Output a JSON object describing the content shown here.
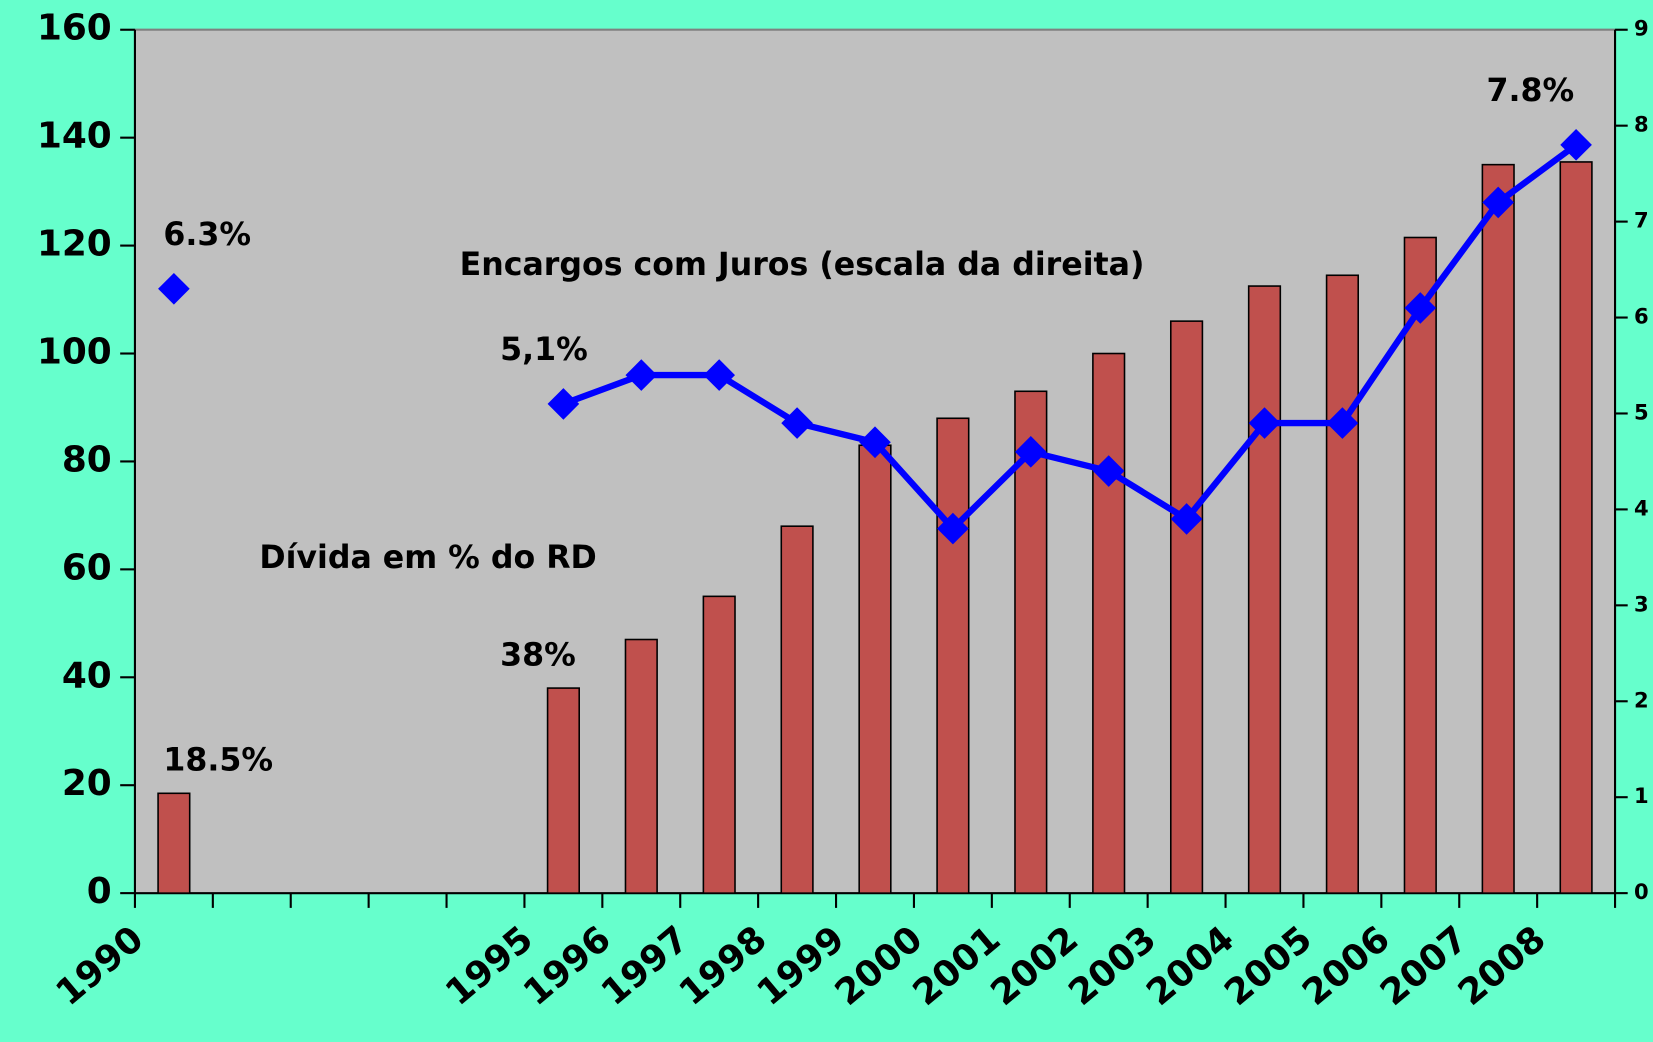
{
  "chart_data": {
    "type": "bar+line",
    "categories": [
      "1990",
      null,
      null,
      null,
      null,
      "1995",
      "1996",
      "1997",
      "1998",
      "1999",
      "2000",
      "2001",
      "2002",
      "2003",
      "2004",
      "2005",
      "2006",
      "2007",
      "2008"
    ],
    "series": [
      {
        "name": "Dívida em % do RD",
        "type": "bar",
        "color": "#c0504d",
        "values": [
          18.5,
          null,
          null,
          null,
          null,
          38,
          47,
          55,
          68,
          83,
          88,
          93,
          100,
          106,
          112.5,
          114.5,
          121.5,
          135,
          135.5
        ],
        "value_labels": [
          "18.5%",
          null,
          null,
          null,
          null,
          "38%",
          null,
          null,
          null,
          null,
          null,
          null,
          null,
          null,
          null,
          null,
          null,
          null,
          null
        ]
      },
      {
        "name": "Encargos com Juros  (escala da direita)",
        "type": "line",
        "axis": "y2",
        "color": "#0000ff",
        "values": [
          6.3,
          null,
          null,
          null,
          null,
          5.1,
          5.4,
          5.4,
          4.9,
          4.7,
          3.8,
          4.6,
          4.4,
          3.9,
          4.9,
          4.9,
          6.1,
          7.2,
          7.8
        ],
        "value_labels": [
          "6.3%",
          null,
          null,
          null,
          null,
          "5,1%",
          null,
          null,
          null,
          null,
          null,
          null,
          null,
          null,
          null,
          null,
          null,
          null,
          "7.8%"
        ]
      }
    ],
    "ylim": [
      0,
      160
    ],
    "yticks": [
      0,
      20,
      40,
      60,
      80,
      100,
      120,
      140,
      160
    ],
    "y2lim": [
      0,
      9
    ],
    "y2ticks": [
      0,
      1,
      2,
      3,
      4,
      5,
      6,
      7,
      8,
      9
    ],
    "grid": false
  }
}
